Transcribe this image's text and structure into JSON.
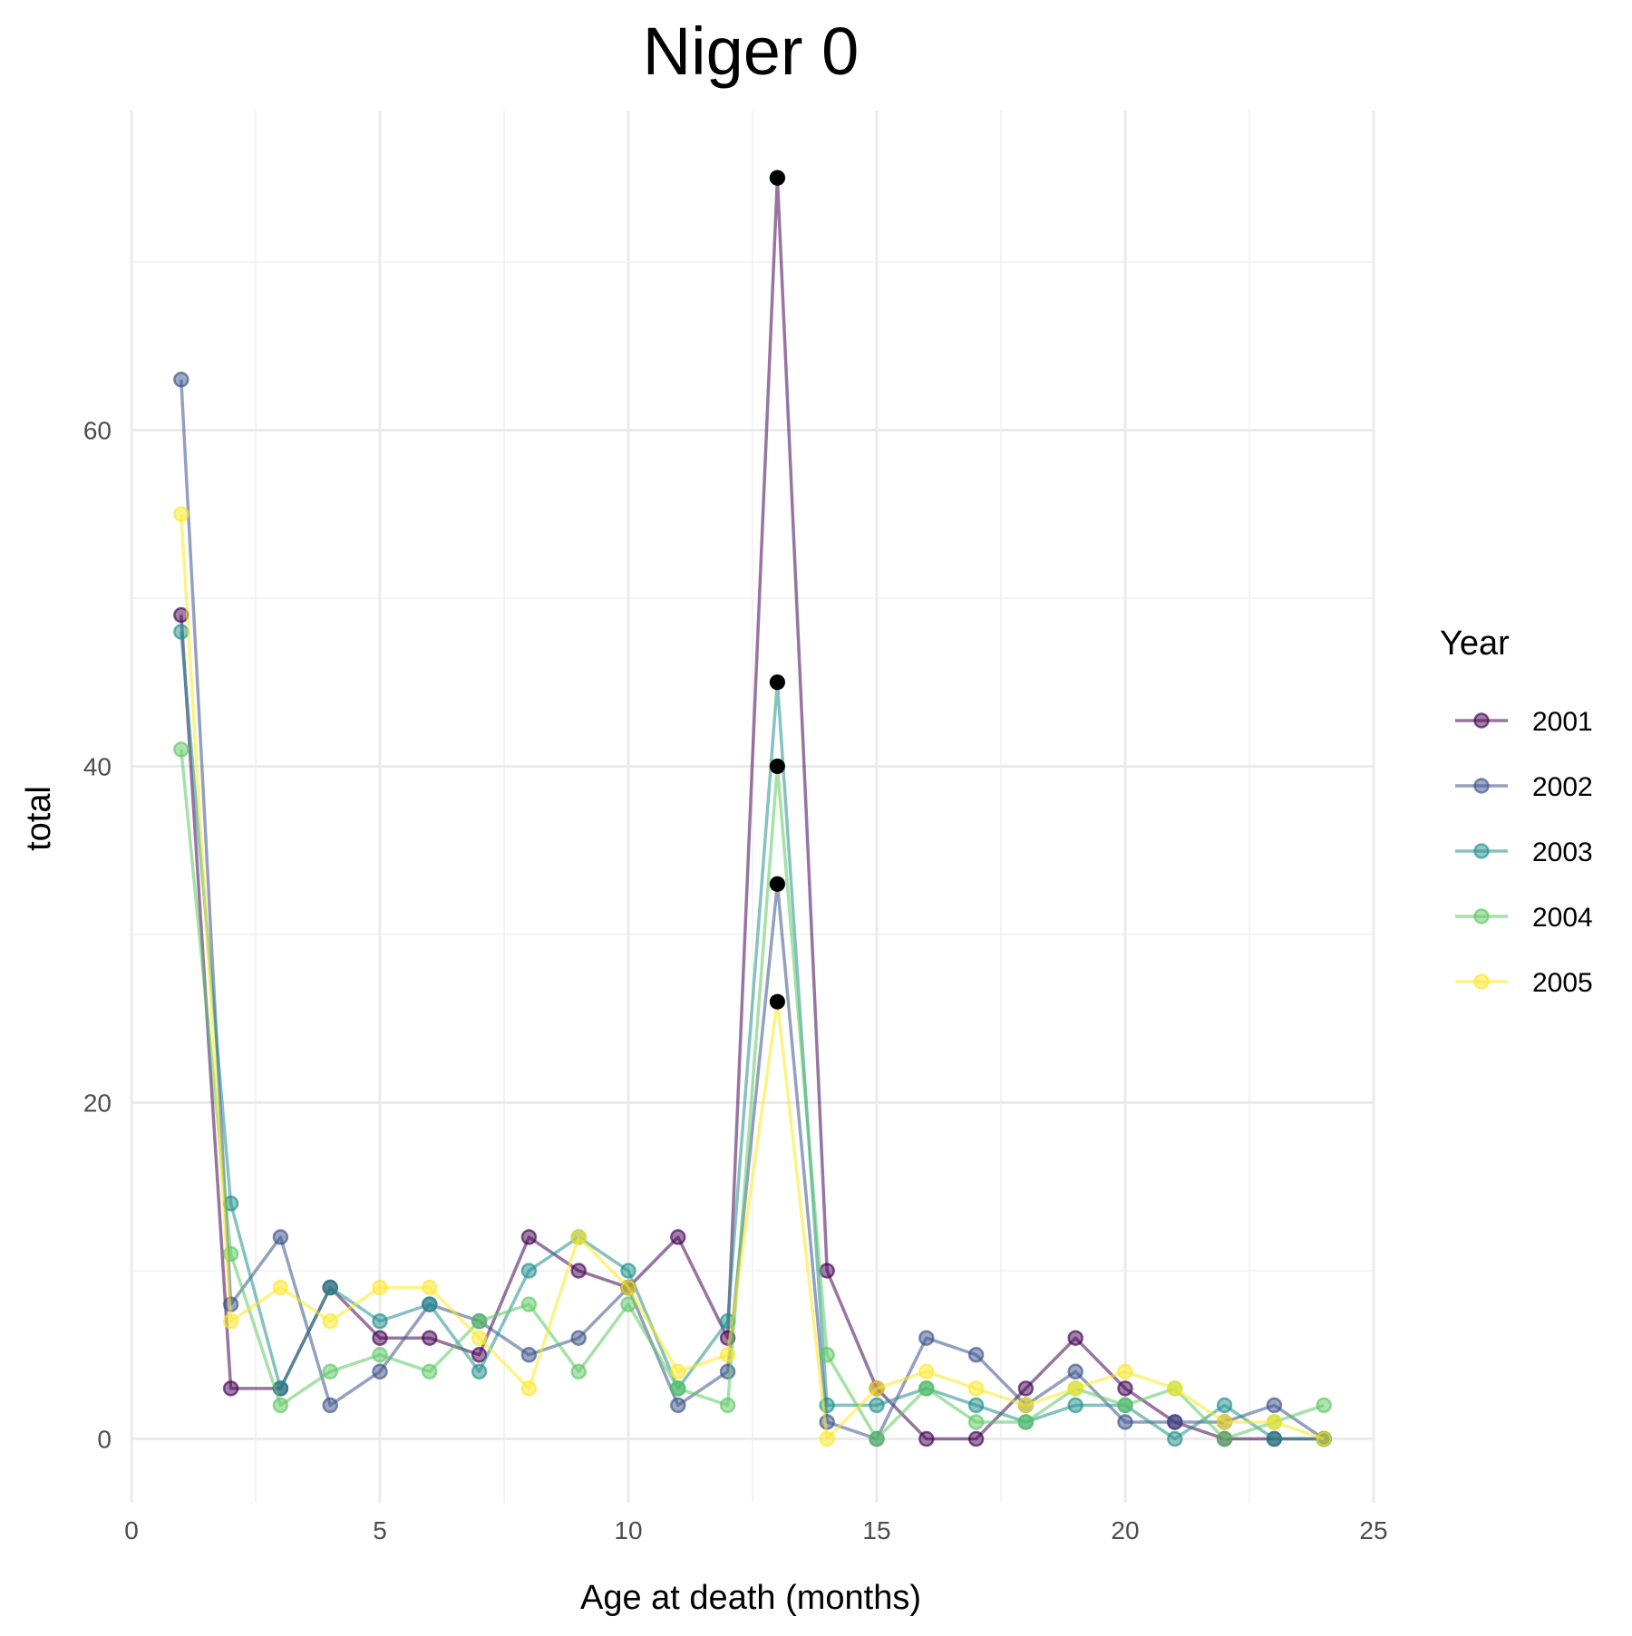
{
  "chart_data": {
    "type": "line",
    "title": "Niger 0",
    "xlabel": "Age at death (months)",
    "ylabel": "total",
    "xlim": [
      0,
      25
    ],
    "ylim": [
      -3.8,
      79
    ],
    "x_ticks": [
      0,
      5,
      10,
      15,
      20,
      25
    ],
    "y_ticks": [
      0,
      20,
      40,
      60
    ],
    "grid": true,
    "legend": {
      "title": "Year",
      "position": "right"
    },
    "x": [
      1,
      2,
      3,
      4,
      5,
      6,
      7,
      8,
      9,
      10,
      11,
      12,
      13,
      14,
      15,
      16,
      17,
      18,
      19,
      20,
      21,
      22,
      23,
      24
    ],
    "series": [
      {
        "name": "2001",
        "color": "#440154",
        "values": [
          49,
          3,
          3,
          9,
          6,
          6,
          5,
          12,
          10,
          9,
          12,
          6,
          75,
          10,
          3,
          0,
          0,
          3,
          6,
          3,
          1,
          0,
          0,
          0
        ]
      },
      {
        "name": "2002",
        "color": "#3B528B",
        "values": [
          63,
          8,
          12,
          2,
          4,
          8,
          7,
          5,
          6,
          9,
          2,
          4,
          33,
          1,
          0,
          6,
          5,
          2,
          4,
          1,
          1,
          1,
          2,
          0
        ]
      },
      {
        "name": "2003",
        "color": "#21908C",
        "values": [
          48,
          14,
          3,
          9,
          7,
          8,
          4,
          10,
          12,
          10,
          3,
          7,
          45,
          2,
          2,
          3,
          2,
          1,
          2,
          2,
          0,
          2,
          0,
          0
        ]
      },
      {
        "name": "2004",
        "color": "#5DC863",
        "values": [
          41,
          11,
          2,
          4,
          5,
          4,
          7,
          8,
          4,
          8,
          3,
          2,
          40,
          5,
          0,
          3,
          1,
          1,
          3,
          2,
          3,
          0,
          1,
          2
        ]
      },
      {
        "name": "2005",
        "color": "#FDE725",
        "values": [
          55,
          7,
          9,
          7,
          9,
          9,
          6,
          3,
          12,
          9,
          4,
          5,
          26,
          0,
          3,
          4,
          3,
          2,
          3,
          4,
          3,
          1,
          1,
          0
        ]
      }
    ],
    "highlight": {
      "x": 13,
      "color": "#000000"
    }
  }
}
